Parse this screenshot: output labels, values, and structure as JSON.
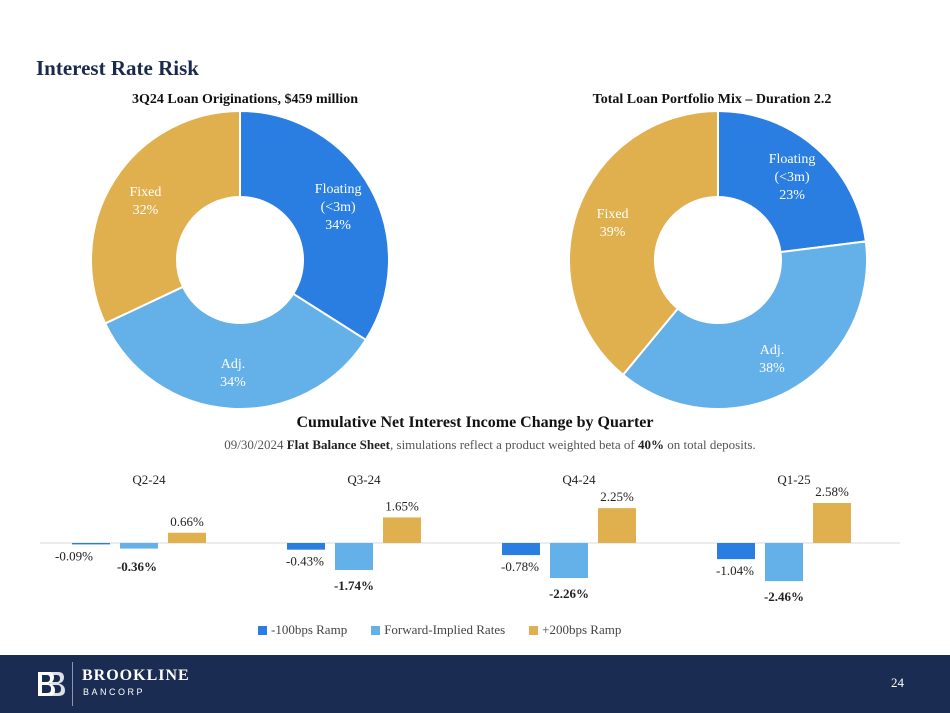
{
  "page": {
    "title": "Interest Rate Risk",
    "page_number": "24"
  },
  "brand": {
    "name": "BROOKLINE",
    "sub": "BANCORP",
    "colors": {
      "footer": "#1b2c52"
    }
  },
  "chart_data": [
    {
      "type": "pie",
      "title": "3Q24 Loan Originations, $459 million",
      "donut": true,
      "slices": [
        {
          "label": [
            "Floating",
            "(<3m)",
            "34%"
          ],
          "value": 34,
          "color": "#2a7de1"
        },
        {
          "label": [
            "Adj.",
            "34%"
          ],
          "value": 34,
          "color": "#64b0e8"
        },
        {
          "label": [
            "Fixed",
            "32%"
          ],
          "value": 32,
          "color": "#e0b04e"
        }
      ]
    },
    {
      "type": "pie",
      "title": "Total Loan Portfolio Mix – Duration 2.2",
      "donut": true,
      "slices": [
        {
          "label": [
            "Floating",
            "(<3m)",
            "23%"
          ],
          "value": 23,
          "color": "#2a7de1"
        },
        {
          "label": [
            "Adj.",
            "38%"
          ],
          "value": 38,
          "color": "#64b0e8"
        },
        {
          "label": [
            "Fixed",
            "39%"
          ],
          "value": 39,
          "color": "#e0b04e"
        }
      ]
    },
    {
      "type": "bar",
      "title": "Cumulative Net Interest Income Change by Quarter",
      "subtitle": {
        "prefix": "09/30/2024 ",
        "bold1": "Flat Balance Sheet",
        "middle": ", simulations reflect a product weighted beta of ",
        "bold2": "40%",
        "suffix": " on total deposits."
      },
      "categories": [
        "Q2-24",
        "Q3-24",
        "Q4-24",
        "Q1-25"
      ],
      "series": [
        {
          "name": "-100bps Ramp",
          "color": "#2a7de1",
          "values": [
            -0.09,
            -0.43,
            -0.78,
            -1.04
          ],
          "labels": [
            "-0.09%",
            "-0.43%",
            "-0.78%",
            "-1.04%"
          ]
        },
        {
          "name": "Forward-Implied Rates",
          "color": "#64b0e8",
          "values": [
            -0.36,
            -1.74,
            -2.26,
            -2.46
          ],
          "labels": [
            "-0.36%",
            "-1.74%",
            "-2.26%",
            "-2.46%"
          ]
        },
        {
          "name": "+200bps Ramp",
          "color": "#e0b04e",
          "values": [
            0.66,
            1.65,
            2.25,
            2.58
          ],
          "labels": [
            "0.66%",
            "1.65%",
            "2.25%",
            "2.58%"
          ]
        }
      ]
    }
  ]
}
